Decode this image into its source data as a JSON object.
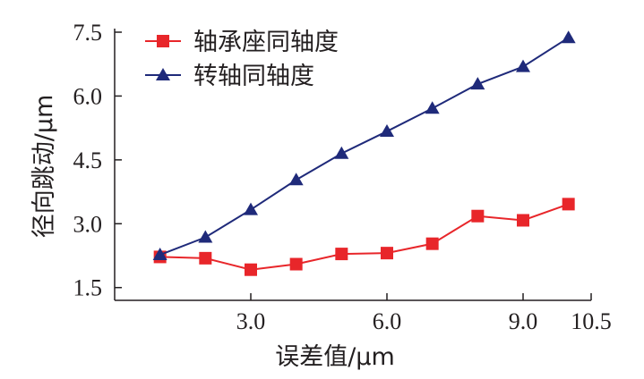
{
  "chart_data": {
    "type": "line",
    "title": "",
    "xlabel": "误差值/μm",
    "ylabel": "径向跳动/μm",
    "xlim": [
      0.0,
      10.5
    ],
    "ylim": [
      1.2,
      7.5
    ],
    "x_ticks": [
      3.0,
      6.0,
      9.0,
      10.5
    ],
    "x_tick_labels": [
      "3.0",
      "6.0",
      "9.0",
      "10.5"
    ],
    "y_ticks": [
      1.5,
      3.0,
      4.5,
      6.0,
      7.5
    ],
    "y_tick_labels": [
      "1.5",
      "3.0",
      "4.5",
      "6.0",
      "7.5"
    ],
    "grid": false,
    "legend_position": "top-left",
    "x": [
      1,
      2,
      3,
      4,
      5,
      6,
      7,
      8,
      9,
      10
    ],
    "series": [
      {
        "name": "轴承座同轴度",
        "marker": "square",
        "color": "#e8262a",
        "values": [
          2.22,
          2.19,
          1.92,
          2.05,
          2.29,
          2.31,
          2.53,
          3.18,
          3.08,
          3.46
        ]
      },
      {
        "name": "转轴同轴度",
        "marker": "triangle",
        "color": "#1f2a7a",
        "values": [
          2.27,
          2.68,
          3.33,
          4.03,
          4.65,
          5.17,
          5.71,
          6.28,
          6.69,
          7.37
        ]
      }
    ]
  }
}
